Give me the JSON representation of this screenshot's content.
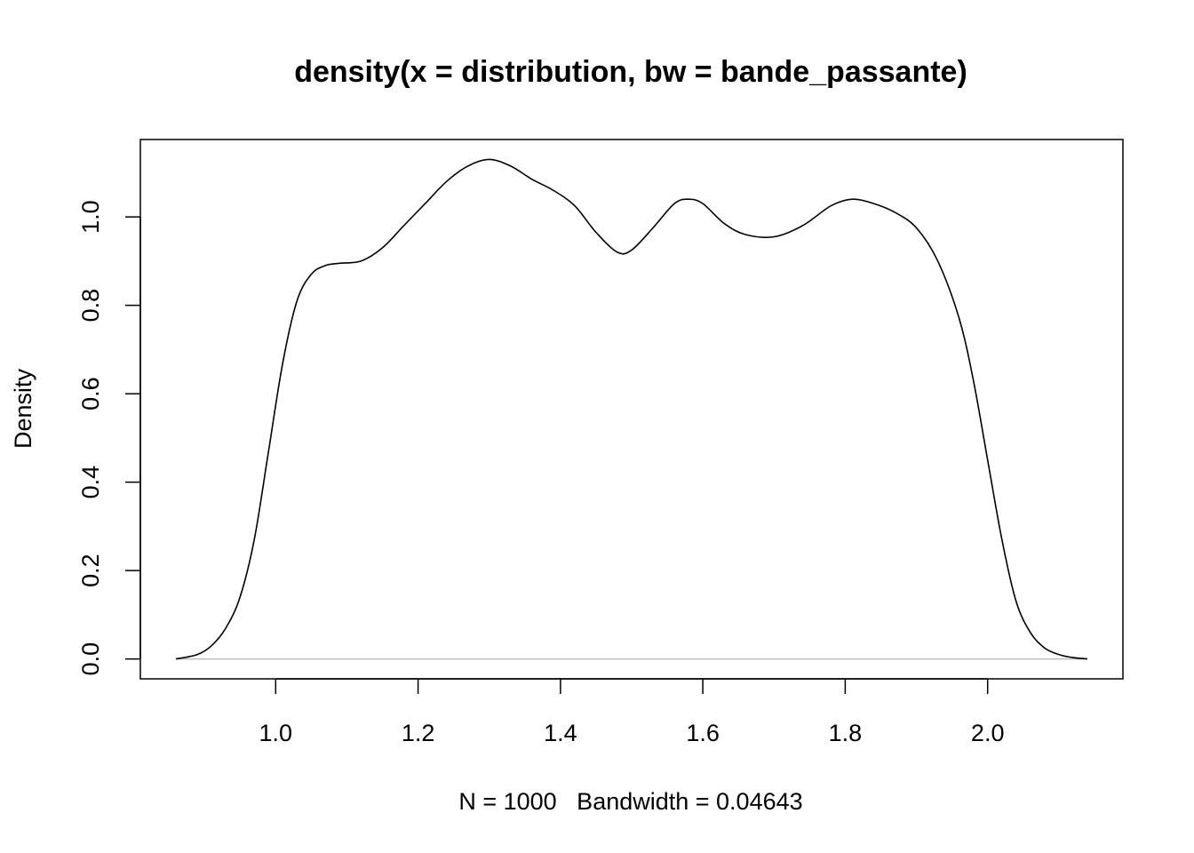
{
  "chart_data": {
    "type": "line",
    "title": "density(x = distribution, bw = bande_passante)",
    "xlabel": "N = 1000   Bandwidth = 0.04643",
    "ylabel": "Density",
    "xlim": [
      0.81,
      2.19
    ],
    "ylim": [
      -0.045,
      1.175
    ],
    "x_ticks": [
      1.0,
      1.2,
      1.4,
      1.6,
      1.8,
      2.0
    ],
    "x_tick_labels": [
      "1.0",
      "1.2",
      "1.4",
      "1.6",
      "1.8",
      "2.0"
    ],
    "y_ticks": [
      0.0,
      0.2,
      0.4,
      0.6,
      0.8,
      1.0
    ],
    "y_tick_labels": [
      "0.0",
      "0.2",
      "0.4",
      "0.6",
      "0.8",
      "1.0"
    ],
    "baseline": 0.0,
    "grid": false,
    "colors": {
      "line": "#000000",
      "baseline": "#bebebe",
      "frame": "#000000"
    },
    "series": [
      {
        "x": [
          0.86,
          0.89,
          0.91,
          0.93,
          0.95,
          0.97,
          0.99,
          1.01,
          1.03,
          1.05,
          1.07,
          1.09,
          1.12,
          1.15,
          1.18,
          1.21,
          1.24,
          1.27,
          1.3,
          1.33,
          1.36,
          1.39,
          1.42,
          1.45,
          1.48,
          1.5,
          1.53,
          1.56,
          1.58,
          1.6,
          1.63,
          1.66,
          1.7,
          1.74,
          1.78,
          1.81,
          1.84,
          1.87,
          1.9,
          1.93,
          1.96,
          1.98,
          2.0,
          2.02,
          2.04,
          2.06,
          2.08,
          2.1,
          2.12,
          2.14
        ],
        "y": [
          0.0,
          0.01,
          0.03,
          0.07,
          0.14,
          0.27,
          0.47,
          0.67,
          0.81,
          0.87,
          0.89,
          0.895,
          0.9,
          0.93,
          0.98,
          1.03,
          1.08,
          1.115,
          1.13,
          1.115,
          1.085,
          1.06,
          1.025,
          0.965,
          0.92,
          0.925,
          0.975,
          1.03,
          1.04,
          1.03,
          0.985,
          0.96,
          0.955,
          0.98,
          1.025,
          1.04,
          1.03,
          1.01,
          0.975,
          0.9,
          0.77,
          0.63,
          0.45,
          0.27,
          0.13,
          0.06,
          0.025,
          0.01,
          0.003,
          0.0
        ]
      }
    ]
  }
}
